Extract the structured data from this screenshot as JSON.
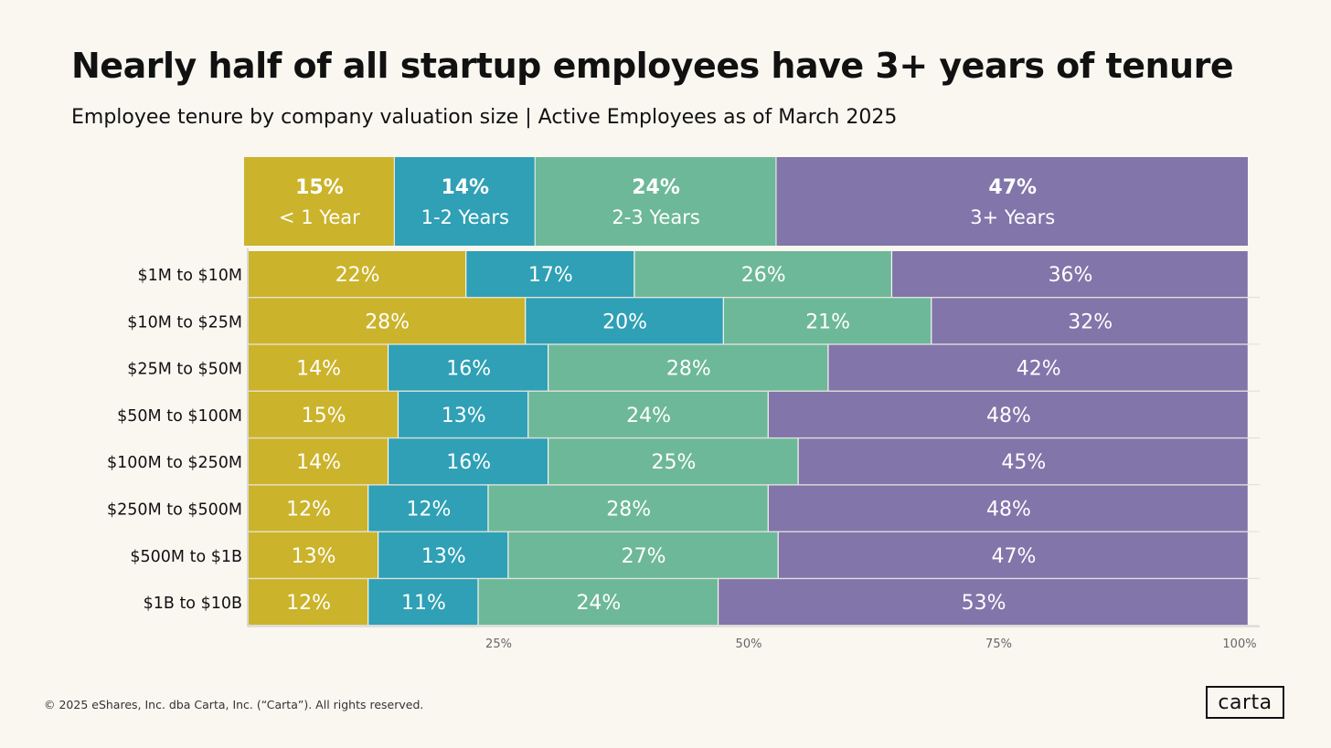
{
  "title": "Nearly half of all startup employees have 3+ years of tenure",
  "subtitle": "Employee tenure by company valuation size | Active Employees as of March 2025",
  "footer": "© 2025 eShares, Inc. dba Carta, Inc. (“Carta”). All rights reserved.",
  "logo_text": "carta",
  "colors": {
    "lt1": "#cbb32b",
    "y1_2": "#2fa0b5",
    "y2_3": "#6db899",
    "y3p": "#8175aa"
  },
  "chart_data": {
    "type": "bar",
    "orientation": "horizontal",
    "stacked": true,
    "normalized": true,
    "totals": {
      "series": [
        {
          "name": "< 1 Year",
          "value": 15,
          "label": "15%"
        },
        {
          "name": "1-2 Years",
          "value": 14,
          "label": "14%"
        },
        {
          "name": "2-3 Years",
          "value": 24,
          "label": "24%"
        },
        {
          "name": "3+ Years",
          "value": 47,
          "label": "47%"
        }
      ]
    },
    "categories": [
      "$1M to $10M",
      "$10M to $25M",
      "$25M to $50M",
      "$50M to $100M",
      "$100M to $250M",
      "$250M to $500M",
      "$500M to $1B",
      "$1B to $10B"
    ],
    "series": [
      {
        "name": "< 1 Year",
        "values": [
          22,
          28,
          14,
          15,
          14,
          12,
          13,
          12
        ],
        "labels": [
          "22%",
          "28%",
          "14%",
          "15%",
          "14%",
          "12%",
          "13%",
          "12%"
        ]
      },
      {
        "name": "1-2 Years",
        "values": [
          17,
          20,
          16,
          13,
          16,
          12,
          13,
          11
        ],
        "labels": [
          "17%",
          "20%",
          "16%",
          "13%",
          "16%",
          "12%",
          "13%",
          "11%"
        ]
      },
      {
        "name": "2-3 Years",
        "values": [
          26,
          21,
          28,
          24,
          25,
          28,
          27,
          24
        ],
        "labels": [
          "26%",
          "21%",
          "28%",
          "24%",
          "25%",
          "28%",
          "27%",
          "24%"
        ]
      },
      {
        "name": "3+ Years",
        "values": [
          36,
          32,
          42,
          48,
          45,
          48,
          47,
          53
        ],
        "labels": [
          "36%",
          "32%",
          "42%",
          "48%",
          "45%",
          "48%",
          "47%",
          "53%"
        ]
      }
    ],
    "x_ticks": [
      {
        "value": 25,
        "label": "25%"
      },
      {
        "value": 50,
        "label": "50%"
      },
      {
        "value": 75,
        "label": "75%"
      },
      {
        "value": 100,
        "label": "100%"
      }
    ],
    "xlim": [
      0,
      100
    ],
    "grid": false,
    "legend": "top"
  }
}
